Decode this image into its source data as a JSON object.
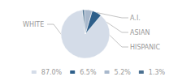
{
  "chart_data": {
    "type": "pie",
    "categories": [
      "WHITE",
      "A.I.",
      "ASIAN",
      "HISPANIC"
    ],
    "values": [
      87.0,
      6.5,
      5.2,
      1.3
    ],
    "value_labels": [
      "87.0%",
      "6.5%",
      "5.2%",
      "1.3%"
    ],
    "colors": [
      "#d4dce8",
      "#2e5f8a",
      "#a8b8cc",
      "#4a7090"
    ],
    "legend": "bottom"
  }
}
